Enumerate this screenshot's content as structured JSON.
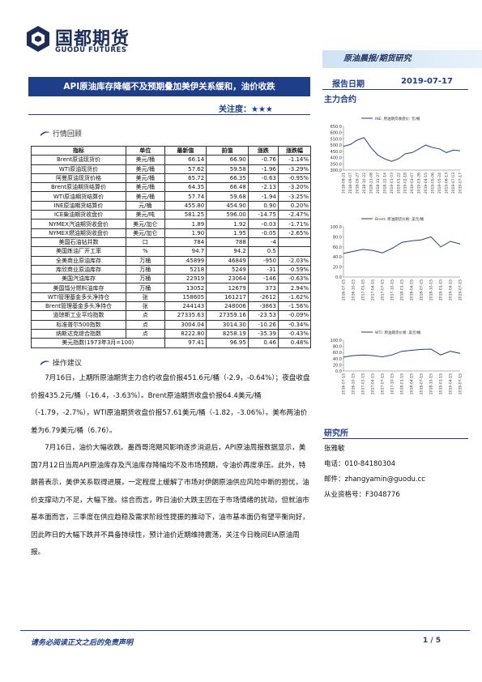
{
  "header": {
    "logo_cn": "国都期货",
    "logo_en": "GUODU FUTURES",
    "banner": "原油晨报/期货研究",
    "title": "API原油库存降幅不及预期叠加美伊关系缓和，油价收跌",
    "date_label": "报告日期",
    "date": "2019-07-17",
    "main_contract": "主力合约",
    "attention": "关注度：★★★"
  },
  "review": {
    "heading": "行情回顾",
    "columns": [
      "指标",
      "单位",
      "最新值",
      "前值",
      "涨跌",
      "涨跌幅"
    ],
    "rows": [
      {
        "name": "Brent原油现货价",
        "unit": "美元/桶",
        "latest": "66.14",
        "prev": "66.90",
        "change": "-0.76",
        "pct": "-1.14%"
      },
      {
        "name": "WTI原油现货价",
        "unit": "美元/桶",
        "latest": "57.62",
        "prev": "59.58",
        "change": "-1.96",
        "pct": "-3.29%"
      },
      {
        "name": "阿曼原油现货价格",
        "unit": "美元/桶",
        "latest": "65.72",
        "prev": "66.35",
        "change": "-0.63",
        "pct": "-0.95%"
      },
      {
        "name": "Brent原油期货结算价",
        "unit": "美元/桶",
        "latest": "64.35",
        "prev": "66.48",
        "change": "-2.13",
        "pct": "-3.20%"
      },
      {
        "name": "WTI原油期货结算价",
        "unit": "美元/桶",
        "latest": "57.74",
        "prev": "59.68",
        "change": "-1.94",
        "pct": "-3.25%"
      },
      {
        "name": "INE原油期货结算价",
        "unit": "元/桶",
        "latest": "455.80",
        "prev": "454.90",
        "change": "0.90",
        "pct": "0.20%"
      },
      {
        "name": "ICE柴油期货收盘价",
        "unit": "美元/吨",
        "latest": "581.25",
        "prev": "596.00",
        "change": "-14.75",
        "pct": "-2.47%"
      },
      {
        "name": "NYMEX汽油期货收盘价",
        "unit": "美元/加仑",
        "latest": "1.89",
        "prev": "1.92",
        "change": "-0.03",
        "pct": "-1.71%"
      },
      {
        "name": "NYMEX燃油期货收盘价",
        "unit": "美元/加仑",
        "latest": "1.90",
        "prev": "1.95",
        "change": "-0.05",
        "pct": "-2.65%"
      },
      {
        "name": "美国石油钻井数",
        "unit": "口",
        "latest": "784",
        "prev": "788",
        "change": "-4"
      },
      {
        "name": "美国炼油厂开工率",
        "unit": "%",
        "latest": "94.7",
        "prev": "94.2",
        "change": "0.5"
      },
      {
        "name": "全美商业原油库存",
        "unit": "万桶",
        "latest": "45899",
        "prev": "46849",
        "change": "-950",
        "pct": "-2.03%"
      },
      {
        "name": "库欣商业原油库存",
        "unit": "万桶",
        "latest": "5218",
        "prev": "5249",
        "change": "-31",
        "pct": "-0.59%"
      },
      {
        "name": "美国汽油库存",
        "unit": "万桶",
        "latest": "22919",
        "prev": "23064",
        "change": "-146",
        "pct": "-0.63%"
      },
      {
        "name": "美国馏分燃料油库存",
        "unit": "万桶",
        "latest": "13052",
        "prev": "12679",
        "change": "373",
        "pct": "2.94%"
      },
      {
        "name": "WTI管理基金多头净持仓",
        "unit": "张",
        "latest": "158605",
        "prev": "161217",
        "change": "-2612",
        "pct": "-1.62%"
      },
      {
        "name": "Brent管理基金多头净持仓",
        "unit": "张",
        "latest": "244143",
        "prev": "248006",
        "change": "-3863",
        "pct": "-1.56%"
      },
      {
        "name": "道琼斯工业平均指数",
        "unit": "点",
        "latest": "27335.63",
        "prev": "27359.16",
        "change": "-23.53",
        "pct": "-0.09%"
      },
      {
        "name": "标准普尔500指数",
        "unit": "点",
        "latest": "3004.04",
        "prev": "3014.30",
        "change": "-10.26",
        "pct": "-0.34%"
      },
      {
        "name": "纳斯达克综合指数",
        "unit": "点",
        "latest": "8222.80",
        "prev": "8258.19",
        "change": "-35.39",
        "pct": "-0.43%"
      },
      {
        "name": "美元指数(1973年3月=100)",
        "latest": "97.41",
        "prev": "96.95",
        "change": "0.46",
        "pct": "0.48%"
      }
    ]
  },
  "advice": {
    "heading": "操作建议",
    "paragraphs": [
      "7月16日，上期所原油期货主力合约收盘价报451.6元/桶（-2.9，-0.64%）；夜盘收盘价报435.2元/桶（-16.4，-3.63%）。Brent原油期货收盘价报64.4美元/桶（-1.79，-2.7%），WTI原油期货收盘价报57.61美元/桶（-1.82，-3.06%）。美布两油价差为6.79美元/桶（6.76）。",
      "7月16日，油价大幅收跌。墨西哥湾飓风影响逐步消退后，API原油周报数据显示，美国7月12日当周API原油库存及汽油库存降幅均不及市场预期，令油价再度承压。此外，特朗普表示，美伊关系取得进展，一定程度上缓解了市场对伊朗原油供应风险中断的担忧，油价支撑动力不足，大幅下挫。综合而言，昨日油价大跌主因在于市场情绪的扰动，但就油市基本面而言，三季度在供应趋稳及需求阶段性提振的推动下，油市基本面仍有望平衡向好，因此昨日的大幅下跌并不具备持续性，预计油价近期维持震荡，关注今日晚间EIA原油周报。"
    ]
  },
  "institute": {
    "heading": "研究所",
    "author": "张雅敏",
    "phone": "电话：010-84180304",
    "email": "邮件：zhangyamin@guodu.cc",
    "license": "从业资格号：F3048776"
  },
  "footer": {
    "disclaimer": "请务必阅读正文之后的免责声明",
    "page": "1 / 5"
  },
  "chart_data": [
    {
      "type": "line",
      "legend": "INE: 原油期货收盘价: 元/桶",
      "color": "#1f3e8a",
      "categories": [
        "2018-08-21",
        "2018-09-07",
        "2018-09-27",
        "2018-10-22",
        "2018-11-08",
        "2018-11-27",
        "2018-12-14",
        "2019-01-03",
        "2019-01-22",
        "2019-02-18",
        "2019-03-07",
        "2019-03-26",
        "2019-04-15",
        "2019-05-06",
        "2019-05-24",
        "2019-06-13",
        "2019-07-03",
        "2019-07-17"
      ],
      "values": [
        490,
        505,
        540,
        560,
        480,
        420,
        390,
        370,
        390,
        430,
        440,
        470,
        500,
        480,
        470,
        440,
        460,
        455
      ],
      "ylim": [
        300,
        650
      ],
      "yticks": [
        {
          "value": 300,
          "label": "300.0"
        },
        {
          "value": 350,
          "label": "350.0"
        },
        {
          "value": 400,
          "label": "400.0"
        },
        {
          "value": 450,
          "label": "450.0"
        },
        {
          "value": 500,
          "label": "500.0"
        },
        {
          "value": 550,
          "label": "550.0"
        },
        {
          "value": 600,
          "label": "600.0"
        },
        {
          "value": 650,
          "label": "650.0"
        }
      ]
    },
    {
      "type": "line",
      "legend": "Brent: 原油期货价格: 美元/桶",
      "color": "#1f3e8a",
      "categories": [
        "2016-07-15",
        "2016-10-15",
        "2017-01-15",
        "2017-04-15",
        "2017-07-15",
        "2017-10-15",
        "2018-01-15",
        "2018-04-15",
        "2018-07-15",
        "2018-10-15",
        "2019-01-15",
        "2019-04-15",
        "2019-07-15"
      ],
      "values": [
        47,
        51,
        55,
        53,
        48,
        57,
        69,
        72,
        74,
        80,
        60,
        71,
        66
      ],
      "ylim": [
        0,
        100
      ],
      "yticks": [
        {
          "value": 0,
          "label": "0.0"
        },
        {
          "value": 20,
          "label": "20.0"
        },
        {
          "value": 40,
          "label": "40.0"
        },
        {
          "value": 60,
          "label": "60.0"
        },
        {
          "value": 80,
          "label": "80.0"
        },
        {
          "value": 100,
          "label": "100.0"
        }
      ]
    },
    {
      "type": "line",
      "legend": "WTI: 原油期货价格: 美元/桶",
      "color": "#1f3e8a",
      "categories": [
        "2016-07-15",
        "2016-10-15",
        "2017-01-15",
        "2017-04-15",
        "2017-07-15",
        "2017-10-15",
        "2018-01-15",
        "2018-04-15",
        "2018-07-15",
        "2018-10-15",
        "2019-01-15",
        "2019-04-15",
        "2019-07-15"
      ],
      "values": [
        45,
        50,
        52,
        50,
        46,
        52,
        64,
        67,
        70,
        71,
        52,
        64,
        57
      ],
      "ylim": [
        0,
        100
      ],
      "yticks": [
        {
          "value": 0,
          "label": "0.0"
        },
        {
          "value": 20,
          "label": "20.0"
        },
        {
          "value": 40,
          "label": "40.0"
        },
        {
          "value": 60,
          "label": "60.0"
        },
        {
          "value": 80,
          "label": "80.0"
        },
        {
          "value": 100,
          "label": "100.0"
        }
      ]
    }
  ]
}
